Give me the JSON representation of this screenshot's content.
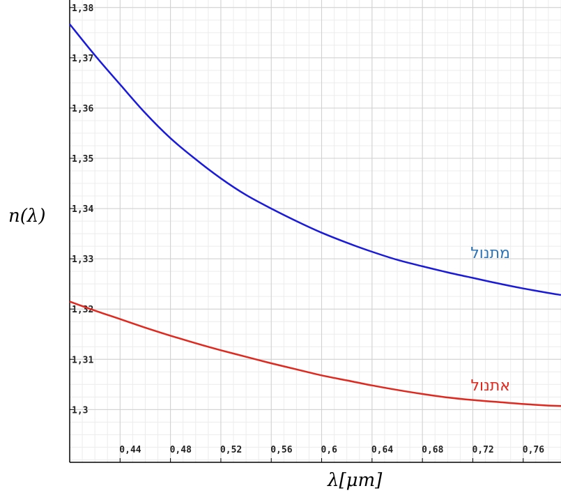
{
  "chart_data": {
    "type": "line",
    "ylabel": "n(λ)",
    "xlabel": "λ[μm]",
    "xlim": [
      0.4,
      0.79
    ],
    "ylim": [
      1.2895,
      1.3815
    ],
    "x_ticks": [
      {
        "value": 0.44,
        "label": "0,44"
      },
      {
        "value": 0.48,
        "label": "0,48"
      },
      {
        "value": 0.52,
        "label": "0,52"
      },
      {
        "value": 0.56,
        "label": "0,56"
      },
      {
        "value": 0.6,
        "label": "0,6"
      },
      {
        "value": 0.64,
        "label": "0,64"
      },
      {
        "value": 0.68,
        "label": "0,68"
      },
      {
        "value": 0.72,
        "label": "0,72"
      },
      {
        "value": 0.76,
        "label": "0,76"
      }
    ],
    "y_ticks": [
      {
        "value": 1.38,
        "label": "1,38"
      },
      {
        "value": 1.37,
        "label": "1,37"
      },
      {
        "value": 1.36,
        "label": "1,36"
      },
      {
        "value": 1.35,
        "label": "1,35"
      },
      {
        "value": 1.34,
        "label": "1,34"
      },
      {
        "value": 1.33,
        "label": "1,33"
      },
      {
        "value": 1.32,
        "label": "1,32"
      },
      {
        "value": 1.31,
        "label": "1,31"
      },
      {
        "value": 1.3,
        "label": "1,3"
      }
    ],
    "grid": true,
    "series": [
      {
        "name": "מתנול",
        "color": "#1a1adb",
        "label_color": "#2e74b5",
        "x": [
          0.4,
          0.42,
          0.44,
          0.46,
          0.48,
          0.5,
          0.52,
          0.54,
          0.56,
          0.58,
          0.6,
          0.62,
          0.64,
          0.66,
          0.68,
          0.7,
          0.72,
          0.74,
          0.76,
          0.78,
          0.79
        ],
        "y": [
          1.3767,
          1.3705,
          1.3647,
          1.359,
          1.354,
          1.3498,
          1.346,
          1.3427,
          1.34,
          1.3375,
          1.3352,
          1.3332,
          1.3314,
          1.3298,
          1.3285,
          1.3273,
          1.3262,
          1.3251,
          1.3241,
          1.3232,
          1.3228
        ]
      },
      {
        "name": "אתנול",
        "color": "#e0281e",
        "label_color": "#e0281e",
        "x": [
          0.4,
          0.42,
          0.44,
          0.46,
          0.48,
          0.5,
          0.52,
          0.54,
          0.56,
          0.58,
          0.6,
          0.62,
          0.64,
          0.66,
          0.68,
          0.7,
          0.72,
          0.74,
          0.76,
          0.78,
          0.79
        ],
        "y": [
          1.3215,
          1.3197,
          1.318,
          1.3163,
          1.3147,
          1.3132,
          1.3118,
          1.3105,
          1.3092,
          1.308,
          1.3068,
          1.3058,
          1.3048,
          1.3039,
          1.3031,
          1.3024,
          1.3019,
          1.3015,
          1.3011,
          1.3008,
          1.3007
        ]
      }
    ]
  }
}
